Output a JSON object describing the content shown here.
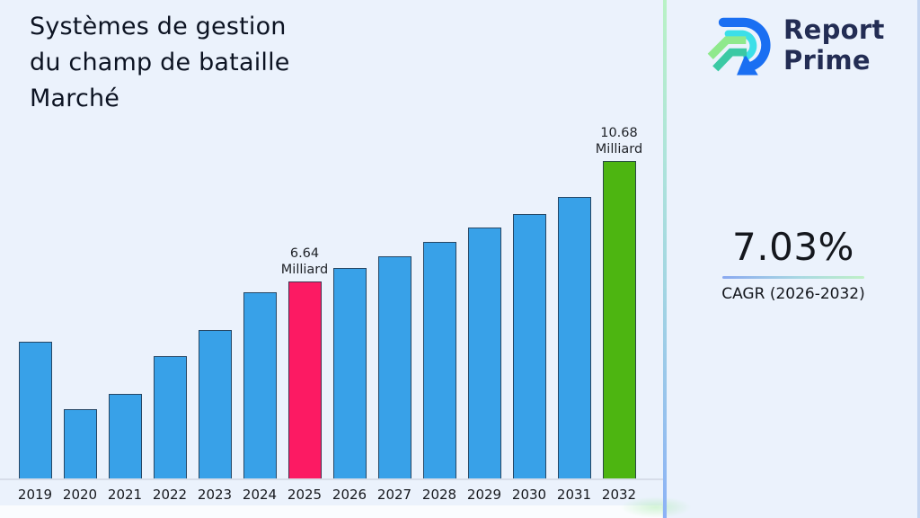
{
  "page": {
    "background": "#ebf2fc"
  },
  "header": {
    "title_lines": [
      "Systèmes de gestion",
      "du champ de bataille",
      "Marché"
    ]
  },
  "brand": {
    "name_line1": "Report",
    "name_line2": "Prime",
    "text_color": "#232d54",
    "logo_colors": {
      "outer_blue": "#1a6ff2",
      "inner_cyan": "#3cdfe8",
      "light_green": "#8fe98c",
      "teal_green": "#3bc9a4"
    }
  },
  "kpi": {
    "value": "7.03%",
    "label": "CAGR (2026-2032)"
  },
  "chart_data": {
    "type": "bar",
    "title": "Systèmes de gestion du champ de bataille Marché",
    "unit": "Milliard",
    "categories": [
      "2019",
      "2020",
      "2021",
      "2022",
      "2023",
      "2024",
      "2025",
      "2026",
      "2027",
      "2028",
      "2029",
      "2030",
      "2031",
      "2032"
    ],
    "values": [
      4.61,
      2.36,
      2.87,
      4.13,
      5.02,
      6.28,
      6.64,
      7.1,
      7.48,
      7.96,
      8.46,
      8.91,
      9.48,
      10.68
    ],
    "ylim": [
      0,
      11.5
    ],
    "grid": false,
    "legend": "none",
    "annotations": [
      {
        "index": 6,
        "lines": [
          "6.64",
          "Milliard"
        ]
      },
      {
        "index": 13,
        "lines": [
          "10.68",
          "Milliard"
        ]
      }
    ],
    "colors": {
      "default_bar": "#38a1e8",
      "highlight_2025": "#fc1a63",
      "highlight_2032": "#4db511",
      "bar_border": "#23374e",
      "axis_line": "#d7dde9"
    },
    "highlights": {
      "6": "highlight_2025",
      "13": "highlight_2032"
    }
  }
}
